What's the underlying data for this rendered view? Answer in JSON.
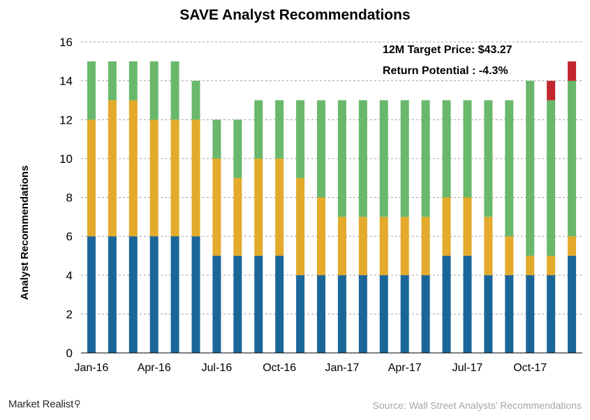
{
  "chart_data": {
    "type": "bar",
    "stacked": true,
    "title": "SAVE Analyst  Recommendations",
    "xlabel": "",
    "ylabel": "Analyst Recommendations",
    "ylim": [
      0,
      16
    ],
    "yticks": [
      0,
      2,
      4,
      6,
      8,
      10,
      12,
      14,
      16
    ],
    "grid": true,
    "categories": [
      "Jan-16",
      "Feb-16",
      "Mar-16",
      "Apr-16",
      "May-16",
      "Jun-16",
      "Jul-16",
      "Aug-16",
      "Sep-16",
      "Oct-16",
      "Nov-16",
      "Dec-16",
      "Jan-17",
      "Feb-17",
      "Mar-17",
      "Apr-17",
      "May-17",
      "Jun-17",
      "Jul-17",
      "Aug-17",
      "Sep-17",
      "Oct-17",
      "Nov-17",
      "Dec-17"
    ],
    "tick_labels": [
      "Jan-16",
      "Apr-16",
      "Jul-16",
      "Oct-16",
      "Jan-17",
      "Apr-17",
      "Jul-17",
      "Oct-17"
    ],
    "tick_indices": [
      0,
      3,
      6,
      9,
      12,
      15,
      18,
      21
    ],
    "series": [
      {
        "color": "#1b6699",
        "values": [
          6,
          6,
          6,
          6,
          6,
          6,
          5,
          5,
          5,
          5,
          4,
          4,
          4,
          4,
          4,
          4,
          4,
          5,
          5,
          4,
          4,
          4,
          4,
          5
        ]
      },
      {
        "color": "#e3aa2b",
        "values": [
          6,
          7,
          7,
          6,
          6,
          6,
          5,
          4,
          5,
          5,
          5,
          4,
          3,
          3,
          3,
          3,
          3,
          3,
          3,
          3,
          2,
          1,
          1,
          1
        ]
      },
      {
        "color": "#6ab86b",
        "values": [
          3,
          2,
          2,
          3,
          3,
          2,
          2,
          3,
          3,
          3,
          4,
          5,
          6,
          6,
          6,
          6,
          6,
          5,
          5,
          6,
          7,
          9,
          8,
          8
        ]
      },
      {
        "color": "#c2272d",
        "values": [
          0,
          0,
          0,
          0,
          0,
          0,
          0,
          0,
          0,
          0,
          0,
          0,
          0,
          0,
          0,
          0,
          0,
          0,
          0,
          0,
          0,
          0,
          1,
          1
        ]
      }
    ],
    "annotations": [
      "12M Target Price:  $43.27",
      "Return Potential : -4.3%"
    ]
  },
  "footer": {
    "logo_text": "Market Realist",
    "logo_icon": "magnifier-icon",
    "source": "Source: Wall Street Analysts' Recommendations"
  }
}
